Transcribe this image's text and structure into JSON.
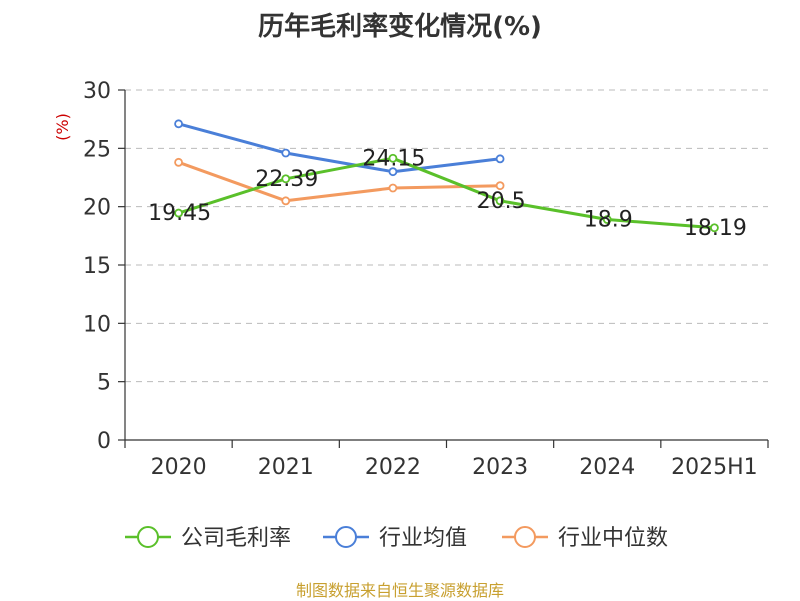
{
  "chart_data": {
    "type": "line",
    "title": "历年毛利率变化情况(%)",
    "ylabel": "(%)",
    "categories": [
      "2020",
      "2021",
      "2022",
      "2023",
      "2024",
      "2025H1"
    ],
    "ylim": [
      0,
      30
    ],
    "yticks": [
      0,
      5,
      10,
      15,
      20,
      25,
      30
    ],
    "grid": true,
    "legend_position": "bottom",
    "series": [
      {
        "name": "公司毛利率",
        "color": "#5ac02a",
        "values": [
          19.45,
          22.39,
          24.15,
          20.5,
          18.9,
          18.19
        ],
        "labels": [
          "19.45",
          "22.39",
          "24.15",
          "20.5",
          "18.9",
          "18.19"
        ]
      },
      {
        "name": "行业均值",
        "color": "#4a7fd8",
        "values": [
          27.1,
          24.6,
          23.0,
          24.1,
          null,
          null
        ]
      },
      {
        "name": "行业中位数",
        "color": "#f39a5f",
        "values": [
          23.8,
          20.5,
          21.6,
          21.8,
          null,
          null
        ]
      }
    ]
  },
  "source": "制图数据来自恒生聚源数据库"
}
